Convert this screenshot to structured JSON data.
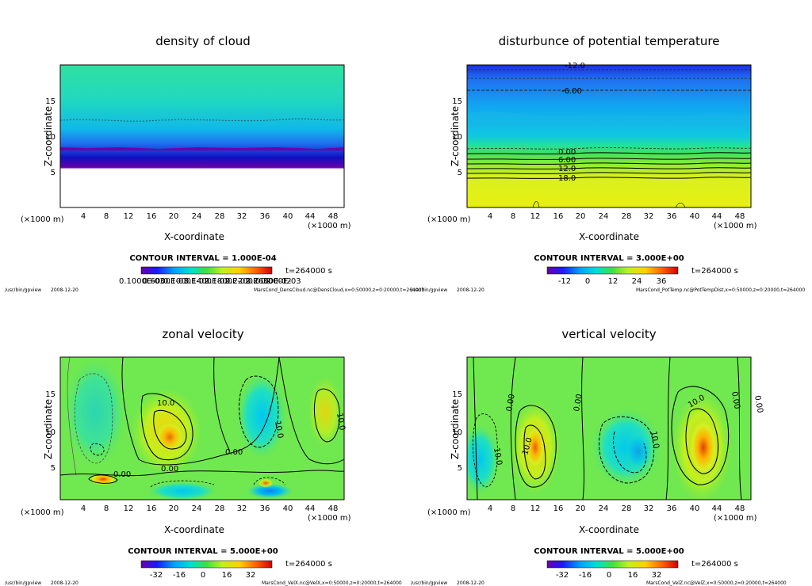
{
  "footer": {
    "program": "/usr/bin/gpview",
    "date": "2008-12-20"
  },
  "chart_data": [
    {
      "type": "heatmap",
      "title": "density of cloud",
      "xlabel": "X-coordinate",
      "ylabel": "Z-coordinate",
      "x_unit": "(×1000 m)",
      "y_unit": "(×1000 m)",
      "x_ticks": [
        "4",
        "8",
        "12",
        "16",
        "20",
        "24",
        "28",
        "32",
        "36",
        "40",
        "44",
        "48"
      ],
      "y_ticks": [
        "5",
        "10",
        "15"
      ],
      "xlim": [
        0,
        50
      ],
      "ylim": [
        0,
        20
      ],
      "contour_interval": "CONTOUR INTERVAL = 1.000E-04",
      "time": "t=264000 s",
      "colorbar_labels": [
        "0.1000E-03",
        "0.6000E-03",
        "0.1000E-02",
        "0.1400E-02",
        "0.1800E-02",
        "0.2200E-02",
        "0.2600E-02",
        "0.3000E-03"
      ],
      "contour_labels": [],
      "source": "MarsCond_DensCloud.nc@DensCloud,x=0:50000,z=0:20000,t=264000"
    },
    {
      "type": "heatmap",
      "title": "disturbunce of potential temperature",
      "xlabel": "X-coordinate",
      "ylabel": "Z-coordinate",
      "x_unit": "(×1000 m)",
      "y_unit": "(×1000 m)",
      "x_ticks": [
        "4",
        "8",
        "12",
        "16",
        "20",
        "24",
        "28",
        "32",
        "36",
        "40",
        "44",
        "48"
      ],
      "y_ticks": [
        "5",
        "10",
        "15"
      ],
      "xlim": [
        0,
        50
      ],
      "ylim": [
        0,
        20
      ],
      "contour_interval": "CONTOUR INTERVAL = 3.000E+00",
      "time": "t=264000 s",
      "colorbar_labels": [
        "-12",
        "0",
        "12",
        "24",
        "36"
      ],
      "contour_labels": [
        "-12.0",
        "-6.00",
        "0.00",
        "6.00",
        "12.0",
        "18.0"
      ],
      "source": "MarsCond_PotTemp.nc@PotTempDist,x=0:50000,z=0:20000,t=264000"
    },
    {
      "type": "heatmap",
      "title": "zonal velocity",
      "xlabel": "X-coordinate",
      "ylabel": "Z-coordinate",
      "x_unit": "(×1000 m)",
      "y_unit": "(×1000 m)",
      "x_ticks": [
        "4",
        "8",
        "12",
        "16",
        "20",
        "24",
        "28",
        "32",
        "36",
        "40",
        "44",
        "48"
      ],
      "y_ticks": [
        "5",
        "10",
        "15"
      ],
      "xlim": [
        0,
        50
      ],
      "ylim": [
        0,
        20
      ],
      "contour_interval": "CONTOUR INTERVAL = 5.000E+00",
      "time": "t=264000 s",
      "colorbar_labels": [
        "-32",
        "-16",
        "0",
        "16",
        "32"
      ],
      "contour_labels": [
        "10.0",
        "0.00",
        "10.0",
        "10.0",
        "0.00",
        "0.00"
      ],
      "source": "MarsCond_VelX.nc@VelX,x=0:50000,z=0:20000,t=264000"
    },
    {
      "type": "heatmap",
      "title": "vertical velocity",
      "xlabel": "X-coordinate",
      "ylabel": "Z-coordinate",
      "x_unit": "(×1000 m)",
      "y_unit": "(×1000 m)",
      "x_ticks": [
        "4",
        "8",
        "12",
        "16",
        "20",
        "24",
        "28",
        "32",
        "36",
        "40",
        "44",
        "48"
      ],
      "y_ticks": [
        "5",
        "10",
        "15"
      ],
      "xlim": [
        0,
        50
      ],
      "ylim": [
        0,
        20
      ],
      "contour_interval": "CONTOUR INTERVAL = 5.000E+00",
      "time": "t=264000 s",
      "colorbar_labels": [
        "-32",
        "-16",
        "0",
        "16",
        "32"
      ],
      "contour_labels": [
        "0.00",
        "0.00",
        "0.00",
        "10.0",
        "10.0",
        "10.0",
        "10.0",
        "0.00"
      ],
      "source": "MarsCond_VelZ.nc@VelZ,x=0:50000,z=0:20000,t=264000"
    }
  ]
}
